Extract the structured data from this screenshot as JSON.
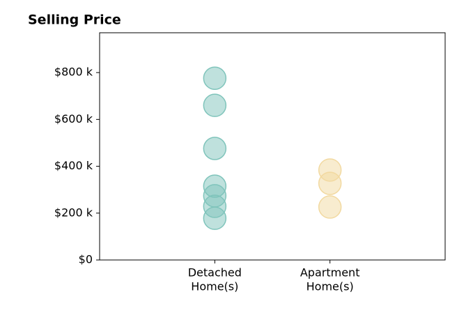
{
  "chart_data": {
    "type": "strip",
    "title": "Selling Price",
    "categories": [
      [
        "Detached",
        "Home(s)"
      ],
      [
        "Apartment",
        "Home(s)"
      ]
    ],
    "values": [
      [
        776,
        660,
        476,
        315,
        274,
        229,
        178
      ],
      [
        384,
        327,
        226
      ]
    ],
    "colors": [
      "#7fc4bb",
      "#f2d9a0"
    ],
    "ylim": [
      0,
      970
    ],
    "yticks": [
      {
        "value": 0,
        "label": "$0"
      },
      {
        "value": 200,
        "label": "$200 k"
      },
      {
        "value": 400,
        "label": "$400 k"
      },
      {
        "value": 600,
        "label": "$600 k"
      },
      {
        "value": 800,
        "label": "$800 k"
      }
    ]
  }
}
